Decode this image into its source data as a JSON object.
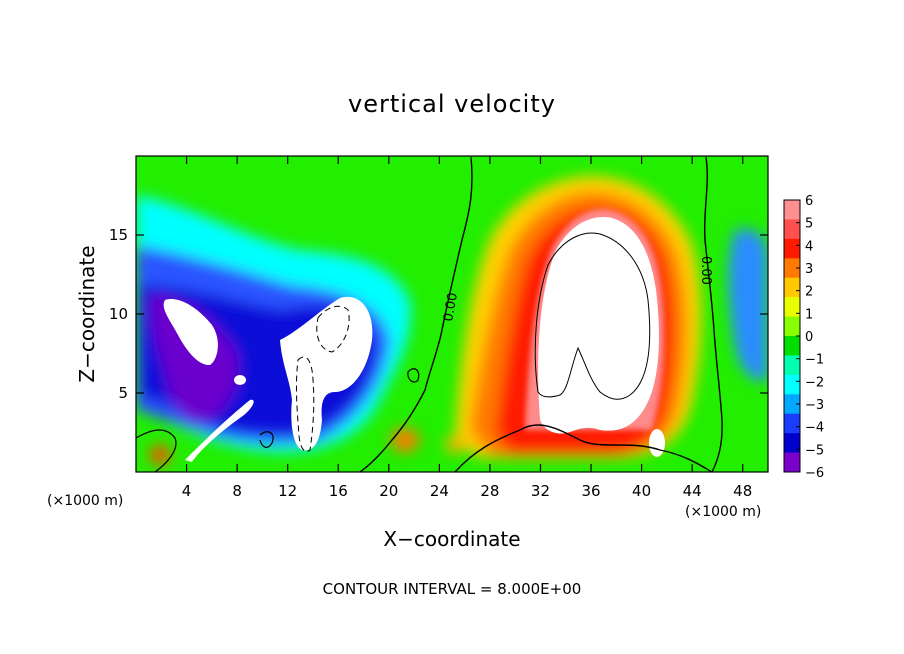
{
  "chart_data": {
    "type": "heatmap",
    "title": "vertical velocity",
    "xlabel": "X−coordinate",
    "ylabel": "Z−coordinate",
    "x_unit_label": "(×1000 m)",
    "z_unit_label": "(×1000 m)",
    "xlim": [
      0,
      50
    ],
    "ylim": [
      0,
      20
    ],
    "xticks": [
      "4",
      "8",
      "12",
      "16",
      "20",
      "24",
      "28",
      "32",
      "36",
      "40",
      "44",
      "48"
    ],
    "xtick_values": [
      4,
      8,
      12,
      16,
      20,
      24,
      28,
      32,
      36,
      40,
      44,
      48
    ],
    "yticks": [
      "5",
      "10",
      "15"
    ],
    "ytick_values": [
      5,
      10,
      15
    ],
    "colorbar": {
      "labels": [
        "6",
        "5",
        "4",
        "3",
        "2",
        "1",
        "0",
        "−1",
        "−2",
        "−3",
        "−4",
        "−5",
        "−6"
      ],
      "colors": [
        "#ff9090",
        "#ff5050",
        "#ff1a00",
        "#ff7a00",
        "#ffc800",
        "#e8ff00",
        "#88ff00",
        "#00dd00",
        "#00ffb0",
        "#00ffff",
        "#00a8ff",
        "#1a3cff",
        "#0000cc",
        "#7a00cc"
      ]
    },
    "contour_labels": [
      "0.00",
      "0.00"
    ],
    "contour_interval_label": "CONTOUR INTERVAL = 8.000E+00"
  }
}
